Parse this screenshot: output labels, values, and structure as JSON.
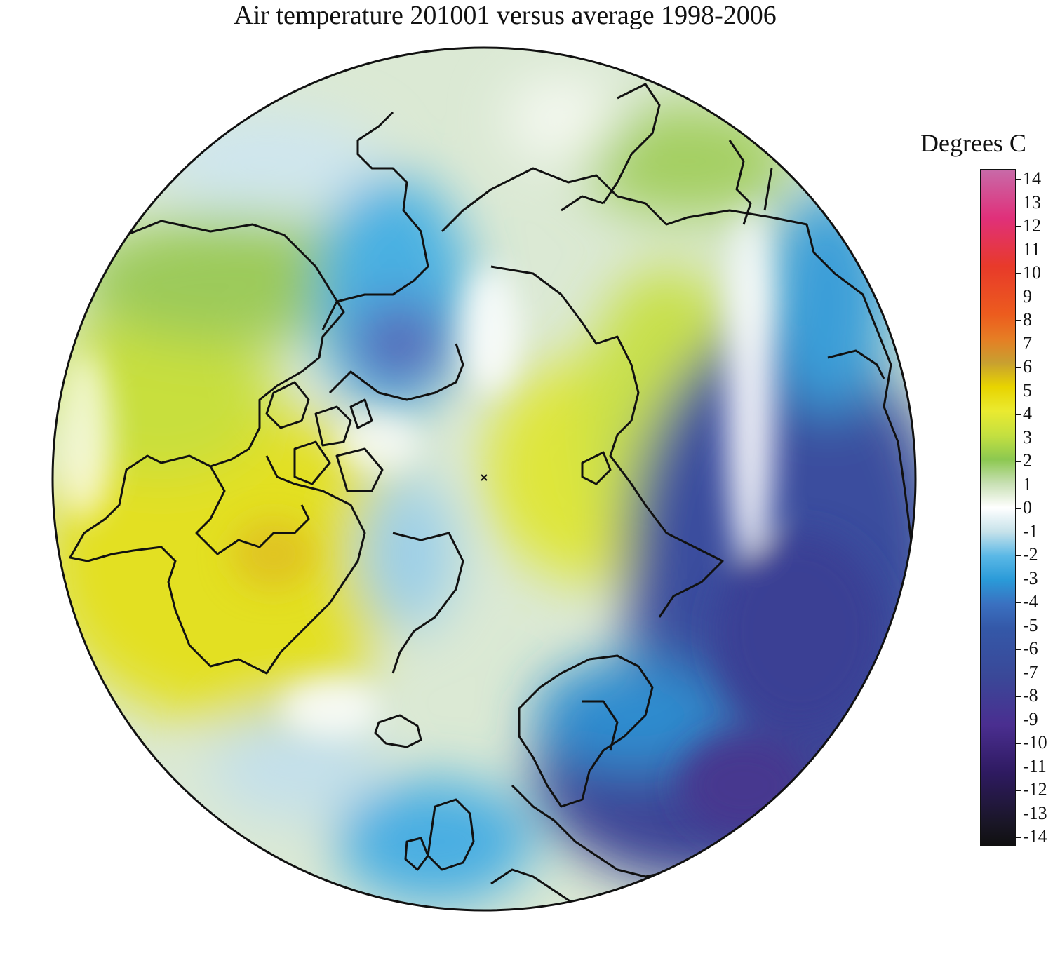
{
  "title": "Air temperature 201001 versus average 1998-2006",
  "legend": {
    "title": "Degrees C",
    "ticks": [
      "14",
      "13",
      "12",
      "11",
      "10",
      "9",
      "8",
      "7",
      "6",
      "5",
      "4",
      "3",
      "2",
      "1",
      "0",
      "-1",
      "-2",
      "-3",
      "-4",
      "-5",
      "-6",
      "-7",
      "-8",
      "-9",
      "-10",
      "-11",
      "-12",
      "-13",
      "-14"
    ],
    "range": [
      -14,
      14
    ],
    "stops": [
      {
        "value": 14,
        "color": "#c86aa8"
      },
      {
        "value": 12,
        "color": "#e0307a"
      },
      {
        "value": 10,
        "color": "#e83a2a"
      },
      {
        "value": 8,
        "color": "#ec5c1e"
      },
      {
        "value": 7,
        "color": "#e67d24"
      },
      {
        "value": 6,
        "color": "#c8a030"
      },
      {
        "value": 5,
        "color": "#e8d400"
      },
      {
        "value": 4,
        "color": "#eaea30"
      },
      {
        "value": 3,
        "color": "#c4e040"
      },
      {
        "value": 2,
        "color": "#8cc850"
      },
      {
        "value": 1,
        "color": "#c8e0b4"
      },
      {
        "value": 0,
        "color": "#ffffff"
      },
      {
        "value": -1,
        "color": "#c6e2ea"
      },
      {
        "value": -2,
        "color": "#5ab8e6"
      },
      {
        "value": -3,
        "color": "#2a9ad8"
      },
      {
        "value": -4,
        "color": "#3a70c0"
      },
      {
        "value": -5,
        "color": "#3458a8"
      },
      {
        "value": -7,
        "color": "#3a4898"
      },
      {
        "value": -9,
        "color": "#4a2e90"
      },
      {
        "value": -11,
        "color": "#2e1a60"
      },
      {
        "value": -13,
        "color": "#1a1628"
      },
      {
        "value": -14,
        "color": "#101010"
      }
    ]
  },
  "map": {
    "projection": "polar-stereographic-north",
    "variable": "air temperature anomaly"
  }
}
